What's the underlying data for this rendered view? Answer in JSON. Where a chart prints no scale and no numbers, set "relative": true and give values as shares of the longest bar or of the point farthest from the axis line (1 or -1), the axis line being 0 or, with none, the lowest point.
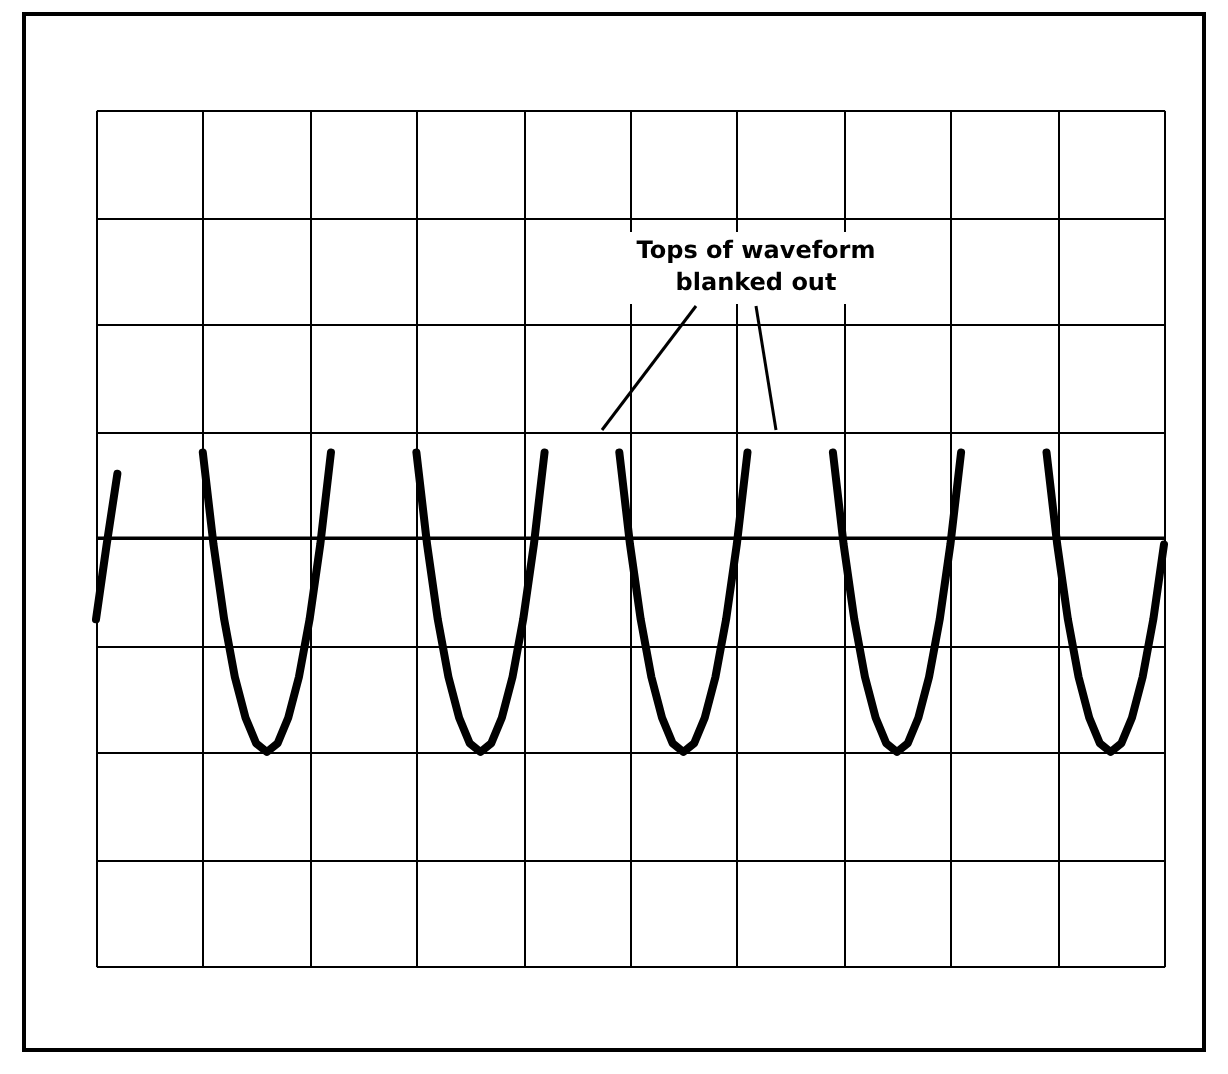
{
  "chart_data": {
    "type": "line",
    "relative": true,
    "grid": true,
    "line_style": "solid",
    "marker": "none",
    "categories": [
      null,
      null,
      null,
      null,
      null,
      null,
      null,
      null,
      null,
      null,
      null,
      null,
      null,
      null,
      null,
      null,
      null,
      null,
      null,
      null,
      null,
      null,
      null,
      null,
      null,
      null,
      null,
      null,
      null,
      null,
      null,
      null,
      null,
      null,
      null,
      null,
      null,
      null,
      null,
      null,
      null,
      null,
      null,
      null,
      null,
      null,
      null,
      null,
      null,
      null,
      null,
      null,
      null,
      null,
      null,
      null,
      null,
      null,
      null,
      null,
      null,
      null,
      null,
      null,
      null,
      null,
      null,
      null,
      null,
      null,
      null,
      null,
      null,
      null,
      null,
      null,
      null,
      null,
      null,
      null,
      null,
      null,
      null,
      null,
      null,
      null,
      null,
      null,
      null,
      null,
      null,
      null,
      null,
      null,
      null,
      null,
      null,
      null,
      null,
      null,
      null
    ],
    "series": [
      {
        "color": "#000000",
        "values": [
          -0.38,
          -0.03,
          0.3,
          null,
          null,
          null,
          null,
          null,
          null,
          null,
          0.4,
          -0.03,
          -0.38,
          -0.65,
          -0.84,
          -0.96,
          -1,
          -0.96,
          -0.84,
          -0.65,
          -0.38,
          -0.03,
          0.4,
          null,
          null,
          null,
          null,
          null,
          null,
          null,
          0.4,
          -0.03,
          -0.38,
          -0.65,
          -0.84,
          -0.96,
          -1,
          -0.96,
          -0.84,
          -0.65,
          -0.38,
          -0.03,
          0.4,
          null,
          null,
          null,
          null,
          null,
          null,
          0.4,
          -0.03,
          -0.38,
          -0.65,
          -0.84,
          -0.96,
          -1,
          -0.96,
          -0.84,
          -0.65,
          -0.38,
          -0.03,
          0.4,
          null,
          null,
          null,
          null,
          null,
          null,
          null,
          0.4,
          -0.03,
          -0.38,
          -0.65,
          -0.84,
          -0.96,
          -1,
          -0.96,
          -0.84,
          -0.65,
          -0.38,
          -0.03,
          0.4,
          null,
          null,
          null,
          null,
          null,
          null,
          null,
          0.4,
          -0.03,
          -0.38,
          -0.65,
          -0.84,
          -0.96,
          -1,
          -0.96,
          -0.84,
          -0.65,
          -0.38,
          -0.03
        ]
      }
    ],
    "annotations": [
      "Tops of waveform\nblanked out"
    ]
  }
}
